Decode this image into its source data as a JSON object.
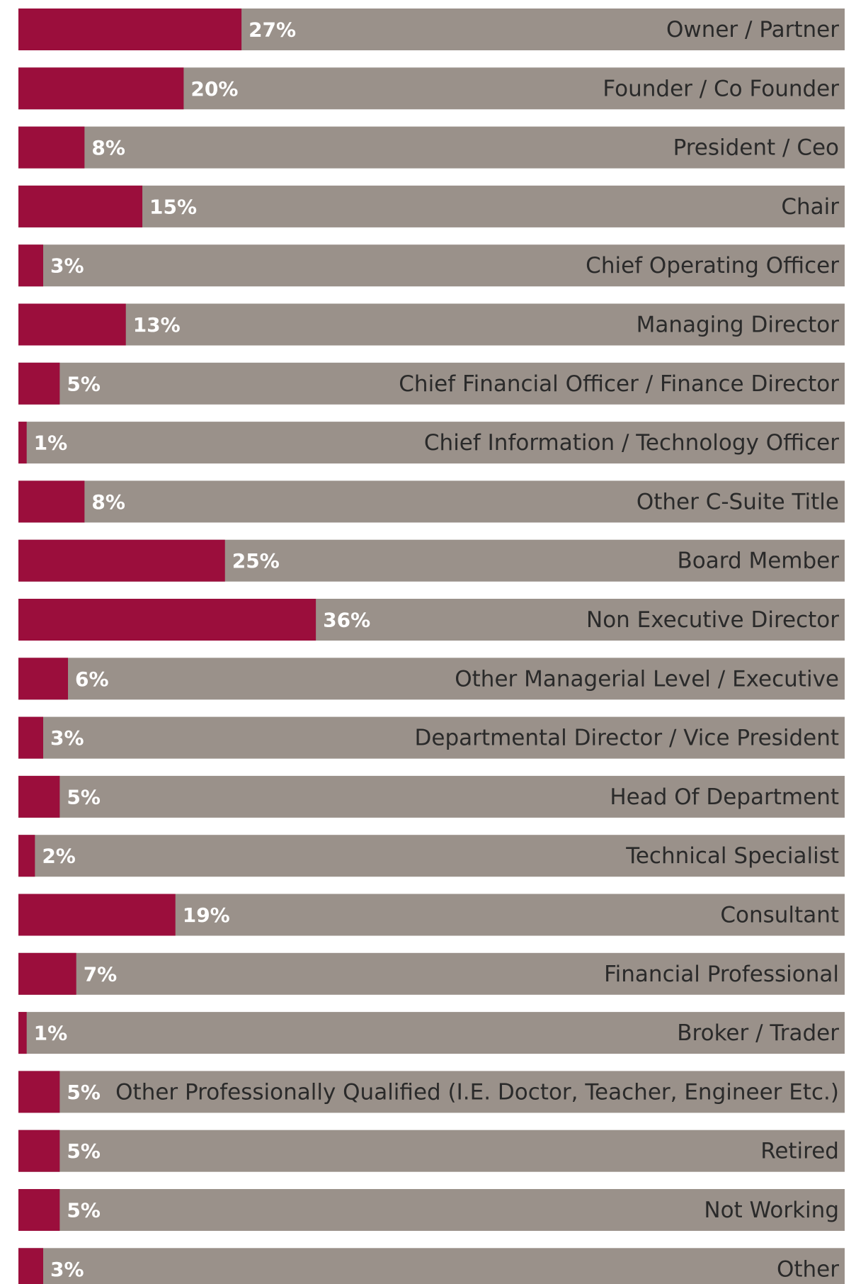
{
  "chart_data": {
    "type": "bar",
    "orientation": "horizontal",
    "categories": [
      "Owner / Partner",
      "Founder / Co Founder",
      "President / Ceo",
      "Chair",
      "Chief Operating Officer",
      "Managing Director",
      "Chief Financial Officer / Finance Director",
      "Chief Information / Technology Officer",
      "Other C-Suite Title",
      "Board Member",
      "Non Executive Director",
      "Other Managerial Level / Executive",
      "Departmental Director / Vice President",
      "Head Of Department",
      "Technical Specialist",
      "Consultant",
      "Financial Professional",
      "Broker / Trader",
      "Other Professionally Qualified (I.E. Doctor, Teacher, Engineer Etc.)",
      "Retired",
      "Not Working",
      "Other"
    ],
    "values": [
      27,
      20,
      8,
      15,
      3,
      13,
      5,
      1,
      8,
      25,
      36,
      6,
      3,
      5,
      2,
      19,
      7,
      1,
      5,
      5,
      5,
      3
    ],
    "value_labels": [
      "27%",
      "20%",
      "8%",
      "15%",
      "3%",
      "13%",
      "5%",
      "1%",
      "8%",
      "25%",
      "36%",
      "6%",
      "3%",
      "5%",
      "2%",
      "19%",
      "7%",
      "1%",
      "5%",
      "5%",
      "5%",
      "3%"
    ],
    "color": "#9b0e3c",
    "track_color": "#9a918a",
    "xlim": [
      0,
      100
    ]
  }
}
